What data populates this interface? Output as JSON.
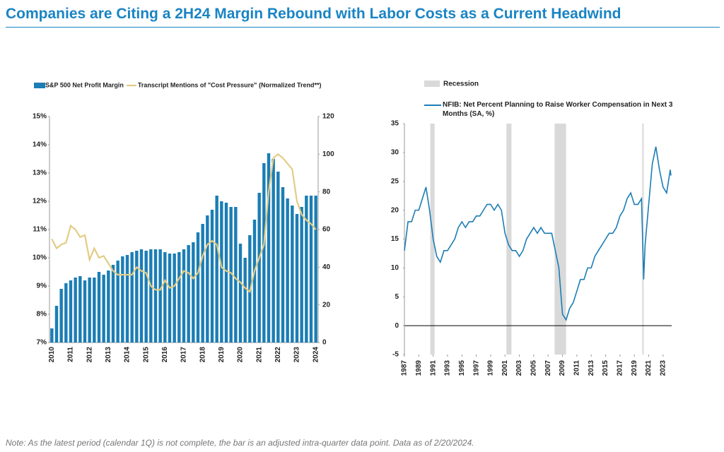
{
  "title": "Companies are Citing a 2H24 Margin Rebound with Labor Costs as a Current Headwind",
  "footnote": "Note: As the latest period (calendar 1Q) is not complete, the bar is an adjusted intra-quarter data point. Data as of 2/20/2024.",
  "chart_data": [
    {
      "type": "bar",
      "categories": [
        "2010",
        null,
        null,
        null,
        "2011",
        null,
        null,
        null,
        "2012",
        null,
        null,
        null,
        "2013",
        null,
        null,
        null,
        "2014",
        null,
        null,
        null,
        "2015",
        null,
        null,
        null,
        "2016",
        null,
        null,
        null,
        "2017",
        null,
        null,
        null,
        "2018",
        null,
        null,
        null,
        "2019",
        null,
        null,
        null,
        "2020",
        null,
        null,
        null,
        "2021",
        null,
        null,
        null,
        "2022",
        null,
        null,
        null,
        "2023",
        null,
        null,
        null,
        "2024"
      ],
      "series": [
        {
          "name": "S&P 500 Net Profit Margin",
          "type": "bar",
          "color": "#1b7db5",
          "values": [
            7.5,
            8.3,
            8.9,
            9.1,
            9.2,
            9.3,
            9.35,
            9.2,
            9.3,
            9.3,
            9.5,
            9.4,
            9.55,
            9.75,
            9.9,
            10.05,
            10.1,
            10.2,
            10.25,
            10.3,
            10.25,
            10.3,
            10.3,
            10.3,
            10.2,
            10.15,
            10.15,
            10.2,
            10.3,
            10.45,
            10.55,
            10.9,
            11.2,
            11.5,
            11.7,
            12.2,
            12.0,
            11.95,
            11.8,
            11.8,
            10.5,
            10.0,
            10.8,
            11.35,
            12.3,
            13.35,
            13.7,
            13.5,
            13.05,
            12.5,
            12.1,
            11.85,
            11.55,
            11.8,
            12.2,
            12.2,
            12.2
          ]
        },
        {
          "name": "Transcript Mentions of \"Cost Pressure\" (Normalized Trend**)",
          "type": "line",
          "axis": "y2",
          "color": "#e3cc85",
          "values": [
            55,
            50,
            52,
            53,
            62,
            60,
            56,
            57,
            44,
            50,
            45,
            46,
            42,
            38,
            36,
            36,
            36,
            36,
            40,
            38,
            37,
            30,
            28,
            28,
            33,
            29,
            30,
            34,
            38,
            37,
            34,
            37,
            46,
            52,
            54,
            52,
            40,
            38,
            37,
            34,
            32,
            29,
            27,
            38,
            45,
            52,
            80,
            98,
            100,
            98,
            95,
            92,
            75,
            68,
            65,
            63,
            60
          ]
        }
      ],
      "ylim": [
        7,
        15
      ],
      "yticks": [
        {
          "value": 7,
          "label": "7%"
        },
        {
          "value": 8,
          "label": "8%"
        },
        {
          "value": 9,
          "label": "9%"
        },
        {
          "value": 10,
          "label": "10%"
        },
        {
          "value": 11,
          "label": "11%"
        },
        {
          "value": 12,
          "label": "12%"
        },
        {
          "value": 13,
          "label": "13%"
        },
        {
          "value": 14,
          "label": "14%"
        },
        {
          "value": 15,
          "label": "15%"
        }
      ],
      "y2lim": [
        0,
        120
      ],
      "y2ticks": [
        0,
        20,
        40,
        60,
        80,
        100,
        120
      ],
      "grid": false
    },
    {
      "type": "line",
      "recession_label": "Recession",
      "recessions": [
        [
          1990.6,
          1991.2
        ],
        [
          2001.2,
          2001.9
        ],
        [
          2007.9,
          2009.5
        ],
        [
          2020.1,
          2020.3
        ]
      ],
      "x": [
        1987,
        1987.5,
        1988,
        1988.5,
        1989,
        1989.5,
        1990,
        1990.5,
        1991,
        1991.5,
        1992,
        1992.5,
        1993,
        1993.5,
        1994,
        1994.5,
        1995,
        1995.5,
        1996,
        1996.5,
        1997,
        1997.5,
        1998,
        1998.5,
        1999,
        1999.5,
        2000,
        2000.5,
        2001,
        2001.5,
        2002,
        2002.5,
        2003,
        2003.5,
        2004,
        2004.5,
        2005,
        2005.5,
        2006,
        2006.5,
        2007,
        2007.5,
        2008,
        2008.5,
        2009,
        2009.5,
        2010,
        2010.5,
        2011,
        2011.5,
        2012,
        2012.5,
        2013,
        2013.5,
        2014,
        2014.5,
        2015,
        2015.5,
        2016,
        2016.5,
        2017,
        2017.5,
        2018,
        2018.5,
        2019,
        2019.5,
        2020,
        2020.3,
        2020.5,
        2021,
        2021.5,
        2022,
        2022.5,
        2023,
        2023.5,
        2024,
        2024.1
      ],
      "series": [
        {
          "name": "NFIB: Net Percent Planning to Raise Worker Compensation in Next 3 Months (SA, %)",
          "color": "#1b7db5",
          "values": [
            13,
            18,
            18,
            20,
            20,
            22,
            24,
            20,
            15,
            12,
            11,
            13,
            13,
            14,
            15,
            17,
            18,
            17,
            18,
            18,
            19,
            19,
            20,
            21,
            21,
            20,
            21,
            20,
            16,
            14,
            13,
            13,
            12,
            13,
            15,
            16,
            17,
            16,
            17,
            16,
            16,
            16,
            13,
            10,
            2,
            1,
            3,
            4,
            6,
            8,
            8,
            10,
            10,
            12,
            13,
            14,
            15,
            16,
            16,
            17,
            19,
            20,
            22,
            23,
            21,
            21,
            22,
            8,
            14,
            21,
            28,
            31,
            27,
            24,
            23,
            27,
            26
          ]
        }
      ],
      "xlim": [
        1987,
        2024.2
      ],
      "xticks": [
        1987,
        1989,
        1991,
        1993,
        1995,
        1997,
        1999,
        2001,
        2003,
        2005,
        2007,
        2009,
        2011,
        2013,
        2015,
        2017,
        2019,
        2021,
        2023
      ],
      "ylim": [
        -5,
        35
      ],
      "yticks": [
        -5,
        0,
        5,
        10,
        15,
        20,
        25,
        30,
        35
      ],
      "grid": false
    }
  ]
}
